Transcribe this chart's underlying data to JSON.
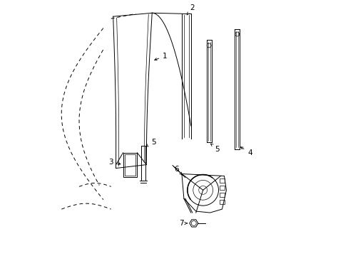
{
  "background_color": "#ffffff",
  "line_color": "#000000",
  "fig_width": 4.89,
  "fig_height": 3.6,
  "dpi": 100,
  "lw": 0.7,
  "fs": 7.5
}
